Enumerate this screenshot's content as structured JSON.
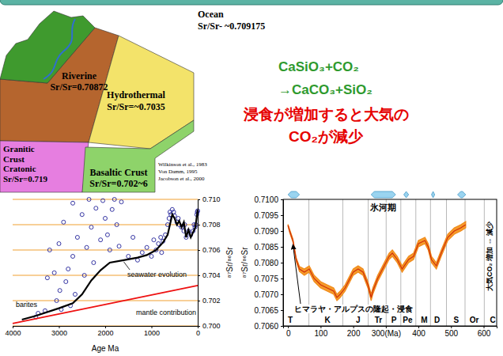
{
  "diagram": {
    "riverine": [
      "Riverine",
      "Sr/Sr=0.70872"
    ],
    "hydrothermal": [
      "Hydrothermal",
      "Sr/Sr=~0.7035"
    ],
    "granitic": [
      "Granitic",
      "Crust",
      "Cratonic",
      "Sr/Sr=0.719"
    ],
    "basaltic": [
      "Basaltic Crust",
      "Sr/Sr=0.702~6"
    ],
    "ocean": [
      "Ocean",
      "Sr/Sr- ~0.709175"
    ],
    "references": [
      "Wilkinson et al., 1983",
      "Von Damm, 1995",
      "Jacobson et al., 2000"
    ]
  },
  "reaction": {
    "equation": [
      "CaSiO₃+CO₂",
      "→CaCO₃+SiO₂"
    ],
    "note": [
      "浸食が増加すると大気の",
      "CO₂が減少"
    ]
  },
  "chart_data": [
    {
      "type": "scatter",
      "xlabel": "Age Ma",
      "ylabel": "⁸⁷Sr/⁸⁶Sr",
      "xlim": [
        4000,
        0
      ],
      "xticks": [
        4000,
        3000,
        2000,
        1000,
        0
      ],
      "ylim": [
        0.7,
        0.71
      ],
      "yticks": [
        {
          "value": 0.7,
          "label": "0.700"
        },
        {
          "value": 0.702,
          "label": "0.702"
        },
        {
          "value": 0.704,
          "label": "0.704"
        },
        {
          "value": 0.706,
          "label": "0.706"
        },
        {
          "value": 0.708,
          "label": "0.708"
        },
        {
          "value": 0.71,
          "label": "0.710"
        }
      ],
      "grid": true,
      "annotations": [
        "barites"
      ],
      "series": [
        {
          "type": "scatter",
          "color": "#23239a",
          "marker": "circle",
          "x": [
            3500,
            3450,
            3300,
            3250,
            3200,
            3100,
            3050,
            3000,
            2980,
            2950,
            2900,
            2850,
            2800,
            2750,
            2700,
            2700,
            2650,
            2600,
            2500,
            2450,
            2400,
            2350,
            2300,
            2250,
            2200,
            2100,
            2050,
            2000,
            1950,
            1900,
            1850,
            1800,
            1750,
            1700,
            1650,
            1500,
            1400,
            1300,
            1200,
            1100,
            1000,
            950,
            900,
            850,
            800,
            780,
            750,
            700,
            650,
            620,
            600,
            580,
            550,
            520,
            500,
            450,
            420,
            400,
            350,
            300,
            280,
            250,
            200,
            150,
            100,
            80,
            60,
            40,
            20,
            10,
            0
          ],
          "values": [
            0.7007,
            0.701,
            0.7012,
            0.7038,
            0.706,
            0.7042,
            0.702,
            0.7065,
            0.7028,
            0.7013,
            0.7082,
            0.7035,
            0.7045,
            0.7016,
            0.7097,
            0.7055,
            0.7025,
            0.707,
            0.7088,
            0.704,
            0.7062,
            0.71,
            0.7078,
            0.705,
            0.7093,
            0.7068,
            0.7099,
            0.7085,
            0.7072,
            0.706,
            0.7092,
            0.71,
            0.708,
            0.7063,
            0.7098,
            0.7055,
            0.707,
            0.7052,
            0.7058,
            0.7062,
            0.7055,
            0.7068,
            0.706,
            0.7065,
            0.707,
            0.7058,
            0.7067,
            0.7072,
            0.708,
            0.7085,
            0.709,
            0.7088,
            0.7092,
            0.709,
            0.7087,
            0.7082,
            0.7085,
            0.708,
            0.7078,
            0.7075,
            0.708,
            0.707,
            0.7075,
            0.7072,
            0.7075,
            0.708,
            0.7078,
            0.708,
            0.7088,
            0.709,
            0.7091
          ]
        },
        {
          "type": "line",
          "name": "seawater evolution",
          "color": "#000000",
          "x": [
            3800,
            3500,
            3000,
            2700,
            2500,
            2300,
            2100,
            1900,
            1600,
            1300,
            1100,
            900,
            750,
            650,
            600,
            550,
            500,
            450,
            400,
            350,
            300,
            250,
            200,
            150,
            100,
            50,
            0
          ],
          "values": [
            0.7005,
            0.7008,
            0.7014,
            0.7018,
            0.7025,
            0.7036,
            0.7044,
            0.705,
            0.7052,
            0.7054,
            0.7056,
            0.706,
            0.7066,
            0.7072,
            0.708,
            0.7088,
            0.7085,
            0.708,
            0.7083,
            0.7078,
            0.7082,
            0.707,
            0.7076,
            0.707,
            0.7074,
            0.7078,
            0.7092
          ]
        },
        {
          "type": "line",
          "name": "mantle contribution",
          "color": "#ee1111",
          "x": [
            4000,
            0
          ],
          "values": [
            0.7002,
            0.7032
          ]
        }
      ]
    },
    {
      "type": "line",
      "ylabel": "⁸⁷Sr/⁸⁶Sr",
      "color": "#d0300a",
      "x": [
        0,
        5,
        15,
        25,
        35,
        50,
        65,
        80,
        100,
        120,
        140,
        150,
        160,
        175,
        190,
        200,
        215,
        230,
        245,
        255,
        260,
        275,
        290,
        310,
        320,
        335,
        350,
        370,
        385,
        400,
        420,
        430,
        440,
        455,
        470,
        490,
        510,
        530,
        545
      ],
      "values": [
        0.70918,
        0.709,
        0.7087,
        0.7081,
        0.7078,
        0.7077,
        0.7078,
        0.7075,
        0.7073,
        0.7072,
        0.7071,
        0.7069,
        0.707,
        0.7072,
        0.7075,
        0.7077,
        0.7078,
        0.7077,
        0.7073,
        0.7069,
        0.7071,
        0.7075,
        0.7078,
        0.7082,
        0.7083,
        0.7081,
        0.7078,
        0.7081,
        0.7082,
        0.7086,
        0.7087,
        0.7085,
        0.7081,
        0.7079,
        0.7083,
        0.7088,
        0.709,
        0.7091,
        0.7092
      ],
      "error": [
        3e-05,
        5e-05,
        5e-05,
        6e-05,
        8e-05,
        0.0001,
        0.0001,
        0.0001,
        0.0001,
        0.0001,
        0.0001,
        0.0001,
        0.0001,
        0.0001,
        0.0001,
        0.0001,
        0.0001,
        0.0001,
        0.0001,
        0.0001,
        0.0001,
        0.0001,
        0.0001,
        0.0001,
        0.0001,
        0.0001,
        0.0001,
        0.0001,
        0.0001,
        0.0001,
        0.0001,
        0.0001,
        0.0001,
        0.0001,
        0.0001,
        0.0001,
        0.0001,
        0.0001,
        0.0001
      ],
      "xlim": [
        -15,
        640
      ],
      "xticks": [
        0,
        100,
        200,
        {
          "value": 300,
          "label": "300(Ma)"
        },
        400,
        500,
        600
      ],
      "ylim": [
        0.706,
        0.71
      ],
      "yticks": [
        {
          "value": 0.706,
          "label": "0.7060"
        },
        {
          "value": 0.7065,
          "label": "0.7065"
        },
        {
          "value": 0.707,
          "label": "0.7070"
        },
        {
          "value": 0.7075,
          "label": "0.7075"
        },
        {
          "value": 0.708,
          "label": "0.7080"
        },
        {
          "value": 0.7085,
          "label": "0.7085"
        },
        {
          "value": 0.709,
          "label": "0.7090"
        },
        {
          "value": 0.7095,
          "label": "0.7095"
        },
        {
          "value": 0.71,
          "label": "0.7100"
        }
      ],
      "periods": {
        "labels": [
          "T",
          "K",
          "J",
          "Tr",
          "P",
          "Pe",
          "M",
          "D",
          "S",
          "Or",
          "C"
        ],
        "x": [
          7,
          121,
          215,
          277,
          325,
          367,
          418,
          457,
          516,
          571,
          628
        ]
      },
      "boundaries": [
        64,
        168,
        246,
        301,
        346,
        392,
        437,
        486,
        543,
        602
      ],
      "glacial_periods": {
        "label": "氷河期",
        "ranges": [
          [
            0,
            35
          ],
          [
            255,
            330
          ],
          [
            355,
            370
          ],
          [
            440,
            450
          ],
          [
            520,
            545
          ]
        ]
      },
      "annotation": "ヒマラヤ・アルプスの隆起・浸食",
      "side_note": "大気CO₂ 増加 ⇔ 減少"
    }
  ]
}
